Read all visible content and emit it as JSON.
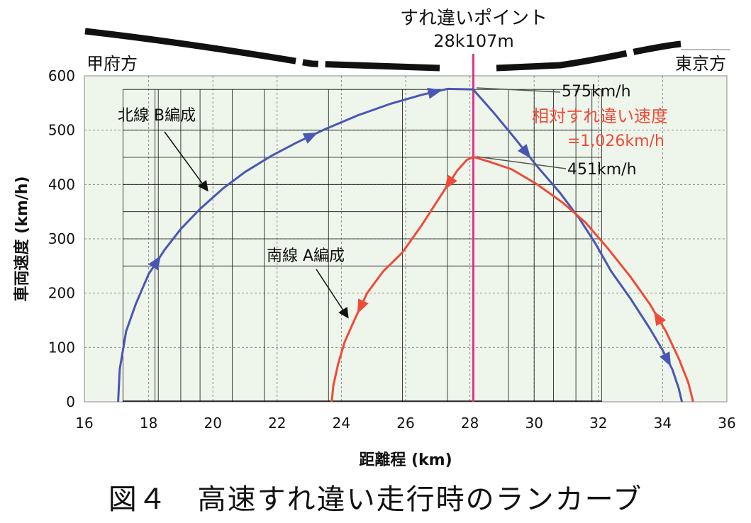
{
  "caption": "図４　高速すれ違い走行時のランカーブ",
  "chart_data": {
    "type": "line",
    "xlabel": "距離程 (km)",
    "ylabel": "車両速度 (km/h)",
    "xlim": [
      16,
      36
    ],
    "ylim": [
      0,
      600
    ],
    "xticks": [
      16,
      18,
      20,
      22,
      24,
      26,
      28,
      30,
      32,
      34,
      36
    ],
    "yticks": [
      0,
      100,
      200,
      300,
      400,
      500,
      600
    ],
    "grid": true,
    "passing_point": {
      "x": 28.107,
      "title": "すれ違いポイント",
      "label": "28k107m"
    },
    "direction_labels": {
      "left": "甲府方",
      "right": "東京方"
    },
    "series": [
      {
        "name": "北線 B編成",
        "color": "#4a56b4",
        "x": [
          17.05,
          17.1,
          17.3,
          17.6,
          18.0,
          18.5,
          19.0,
          19.6,
          20.3,
          21.0,
          21.8,
          22.6,
          23.5,
          24.5,
          25.5,
          26.5,
          27.3,
          28.1,
          28.7,
          29.4,
          30.1,
          30.8,
          31.4,
          31.9,
          32.4,
          33.0,
          33.6,
          34.0,
          34.3,
          34.5,
          34.6
        ],
        "y": [
          0,
          60,
          130,
          180,
          235,
          280,
          318,
          355,
          392,
          423,
          452,
          477,
          502,
          527,
          548,
          565,
          576,
          575,
          535,
          485,
          433,
          385,
          338,
          292,
          240,
          190,
          135,
          95,
          60,
          25,
          0
        ]
      },
      {
        "name": "南線 A編成",
        "color": "#f04a3a",
        "x": [
          23.7,
          23.75,
          23.9,
          24.1,
          24.4,
          24.8,
          25.3,
          25.9,
          26.5,
          27.1,
          27.6,
          27.9,
          28.1,
          28.6,
          29.3,
          30.1,
          30.9,
          31.6,
          32.3,
          33.0,
          33.6,
          34.1,
          34.5,
          34.8,
          34.95
        ],
        "y": [
          0,
          30,
          70,
          110,
          150,
          200,
          240,
          275,
          325,
          380,
          425,
          445,
          451,
          442,
          428,
          400,
          366,
          330,
          282,
          230,
          180,
          130,
          80,
          35,
          0
        ]
      }
    ],
    "annotations": [
      {
        "text": "575km/h",
        "x": 28.107,
        "y": 575
      },
      {
        "text": "451km/h",
        "x": 28.107,
        "y": 451
      },
      {
        "text": "相対すれ違い速度",
        "color": "#f04a3a"
      },
      {
        "text": "=1,026km/h",
        "color": "#f04a3a"
      },
      {
        "text": "北線 B編成"
      },
      {
        "text": "南線 A編成"
      }
    ]
  }
}
